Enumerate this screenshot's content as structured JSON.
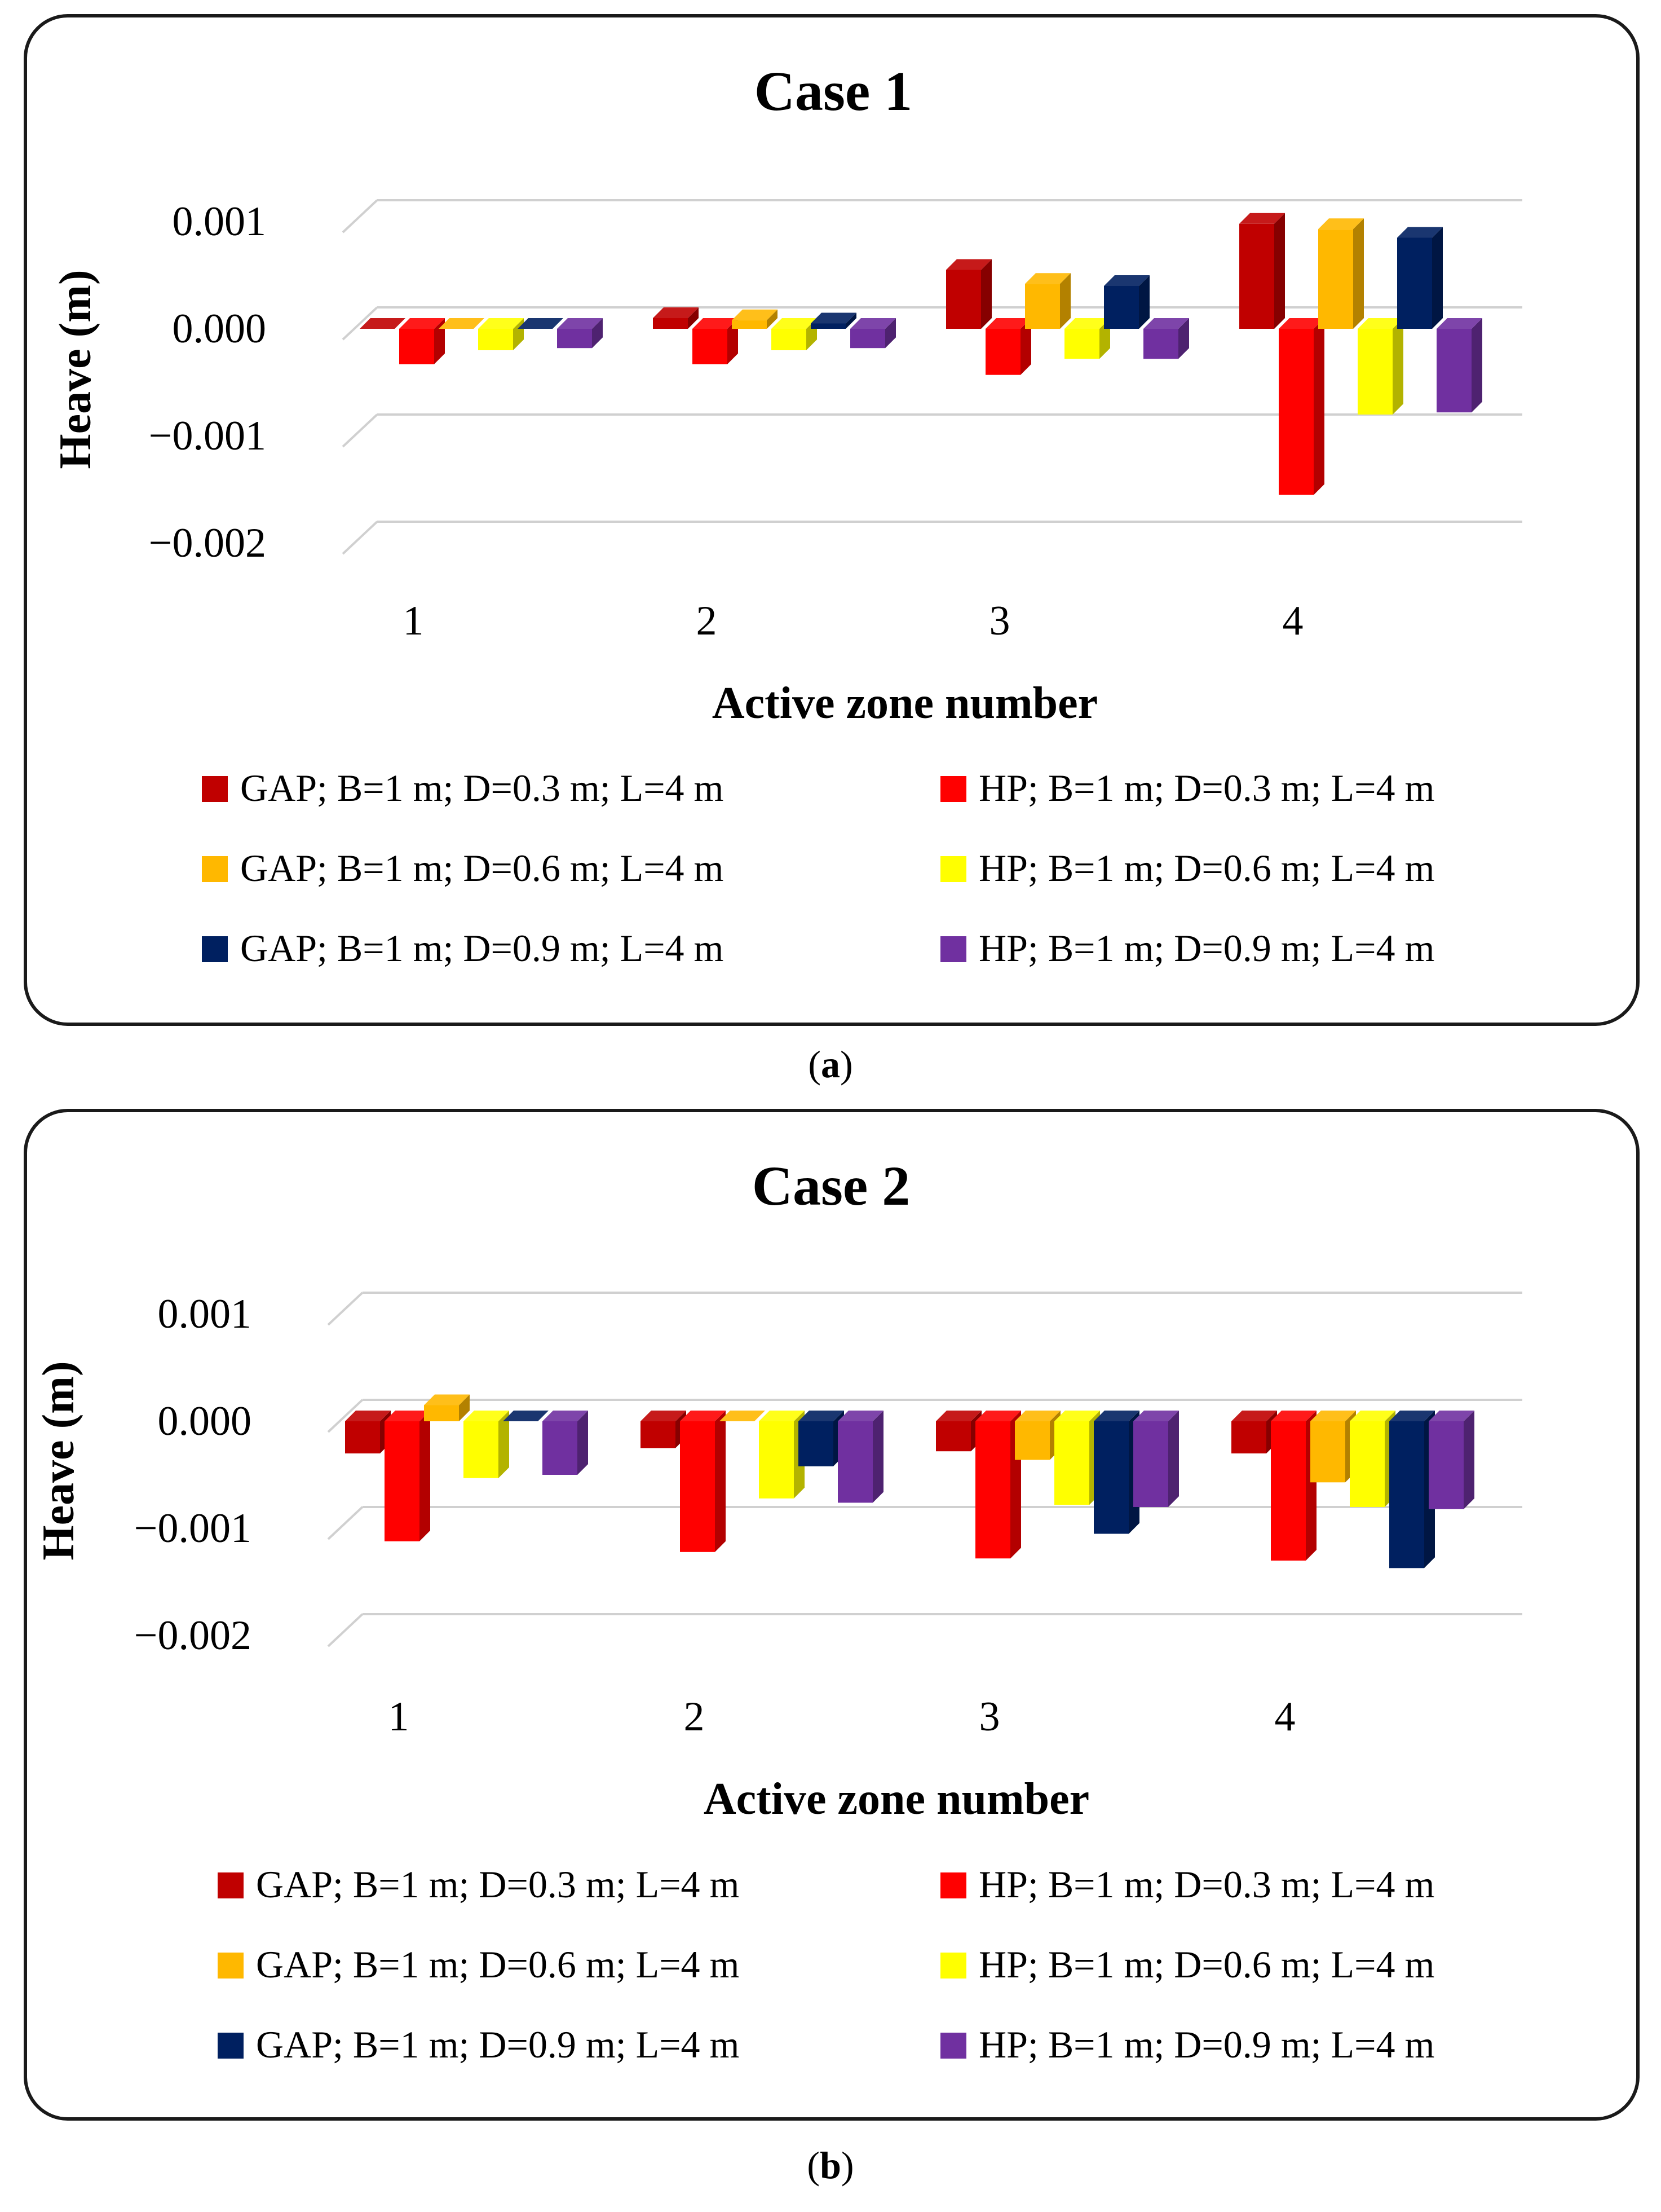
{
  "chart_data": [
    {
      "type": "bar",
      "panel": "(a)",
      "title": "Case 1",
      "xlabel": "Active zone number",
      "ylabel": "Heave (m)",
      "categories": [
        "1",
        "2",
        "3",
        "4"
      ],
      "ylim": [
        -0.002,
        0.001
      ],
      "yticks": [
        "0.001",
        "0.000",
        "−0.001",
        "−0.002"
      ],
      "ytick_values": [
        0.001,
        0.0,
        -0.001,
        -0.002
      ],
      "series": [
        {
          "name": "GAP; B=1 m; D=0.3 m; L=4 m",
          "color": "#C00000",
          "values": [
            0.0,
            0.0001,
            0.00055,
            0.00098
          ]
        },
        {
          "name": "HP; B=1 m; D=0.3 m; L=4 m",
          "color": "#FF0000",
          "values": [
            -0.00033,
            -0.00033,
            -0.00043,
            -0.00155
          ]
        },
        {
          "name": "GAP; B=1 m; D=0.6 m; L=4 m",
          "color": "#FFB800",
          "values": [
            0.0,
            8e-05,
            0.00042,
            0.00093
          ]
        },
        {
          "name": "HP; B=1 m; D=0.6 m; L=4 m",
          "color": "#FFFF00",
          "values": [
            -0.0002,
            -0.0002,
            -0.00028,
            -0.0008
          ]
        },
        {
          "name": "GAP; B=1 m; D=0.9 m; L=4 m",
          "color": "#002060",
          "values": [
            0.0,
            5e-05,
            0.0004,
            0.00085
          ]
        },
        {
          "name": "HP; B=1 m; D=0.9 m; L=4 m",
          "color": "#7030A0",
          "values": [
            -0.00018,
            -0.00018,
            -0.00028,
            -0.00078
          ]
        }
      ],
      "legend": "bottom"
    },
    {
      "type": "bar",
      "panel": "(b)",
      "title": "Case 2",
      "xlabel": "Active zone number",
      "ylabel": "Heave (m)",
      "categories": [
        "1",
        "2",
        "3",
        "4"
      ],
      "ylim": [
        -0.002,
        0.001
      ],
      "yticks": [
        "0.001",
        "0.000",
        "−0.001",
        "−0.002"
      ],
      "ytick_values": [
        0.001,
        0.0,
        -0.001,
        -0.002
      ],
      "series": [
        {
          "name": "GAP; B=1 m; D=0.3 m; L=4 m",
          "color": "#C00000",
          "values": [
            -0.0003,
            -0.00025,
            -0.00028,
            -0.0003
          ]
        },
        {
          "name": "HP; B=1 m; D=0.3 m; L=4 m",
          "color": "#FF0000",
          "values": [
            -0.00112,
            -0.00122,
            -0.00128,
            -0.0013
          ]
        },
        {
          "name": "GAP; B=1 m; D=0.6 m; L=4 m",
          "color": "#FFB800",
          "values": [
            0.00015,
            0.0,
            -0.00036,
            -0.00057
          ]
        },
        {
          "name": "HP; B=1 m; D=0.6 m; L=4 m",
          "color": "#FFFF00",
          "values": [
            -0.00053,
            -0.00072,
            -0.00078,
            -0.0008
          ]
        },
        {
          "name": "GAP; B=1 m; D=0.9 m; L=4 m",
          "color": "#002060",
          "values": [
            0.0,
            -0.00042,
            -0.00105,
            -0.00137
          ]
        },
        {
          "name": "HP; B=1 m; D=0.9 m; L=4 m",
          "color": "#7030A0",
          "values": [
            -0.0005,
            -0.00076,
            -0.0008,
            -0.00082
          ]
        }
      ],
      "legend": "bottom"
    }
  ],
  "captions": {
    "a": "a",
    "b": "b"
  }
}
